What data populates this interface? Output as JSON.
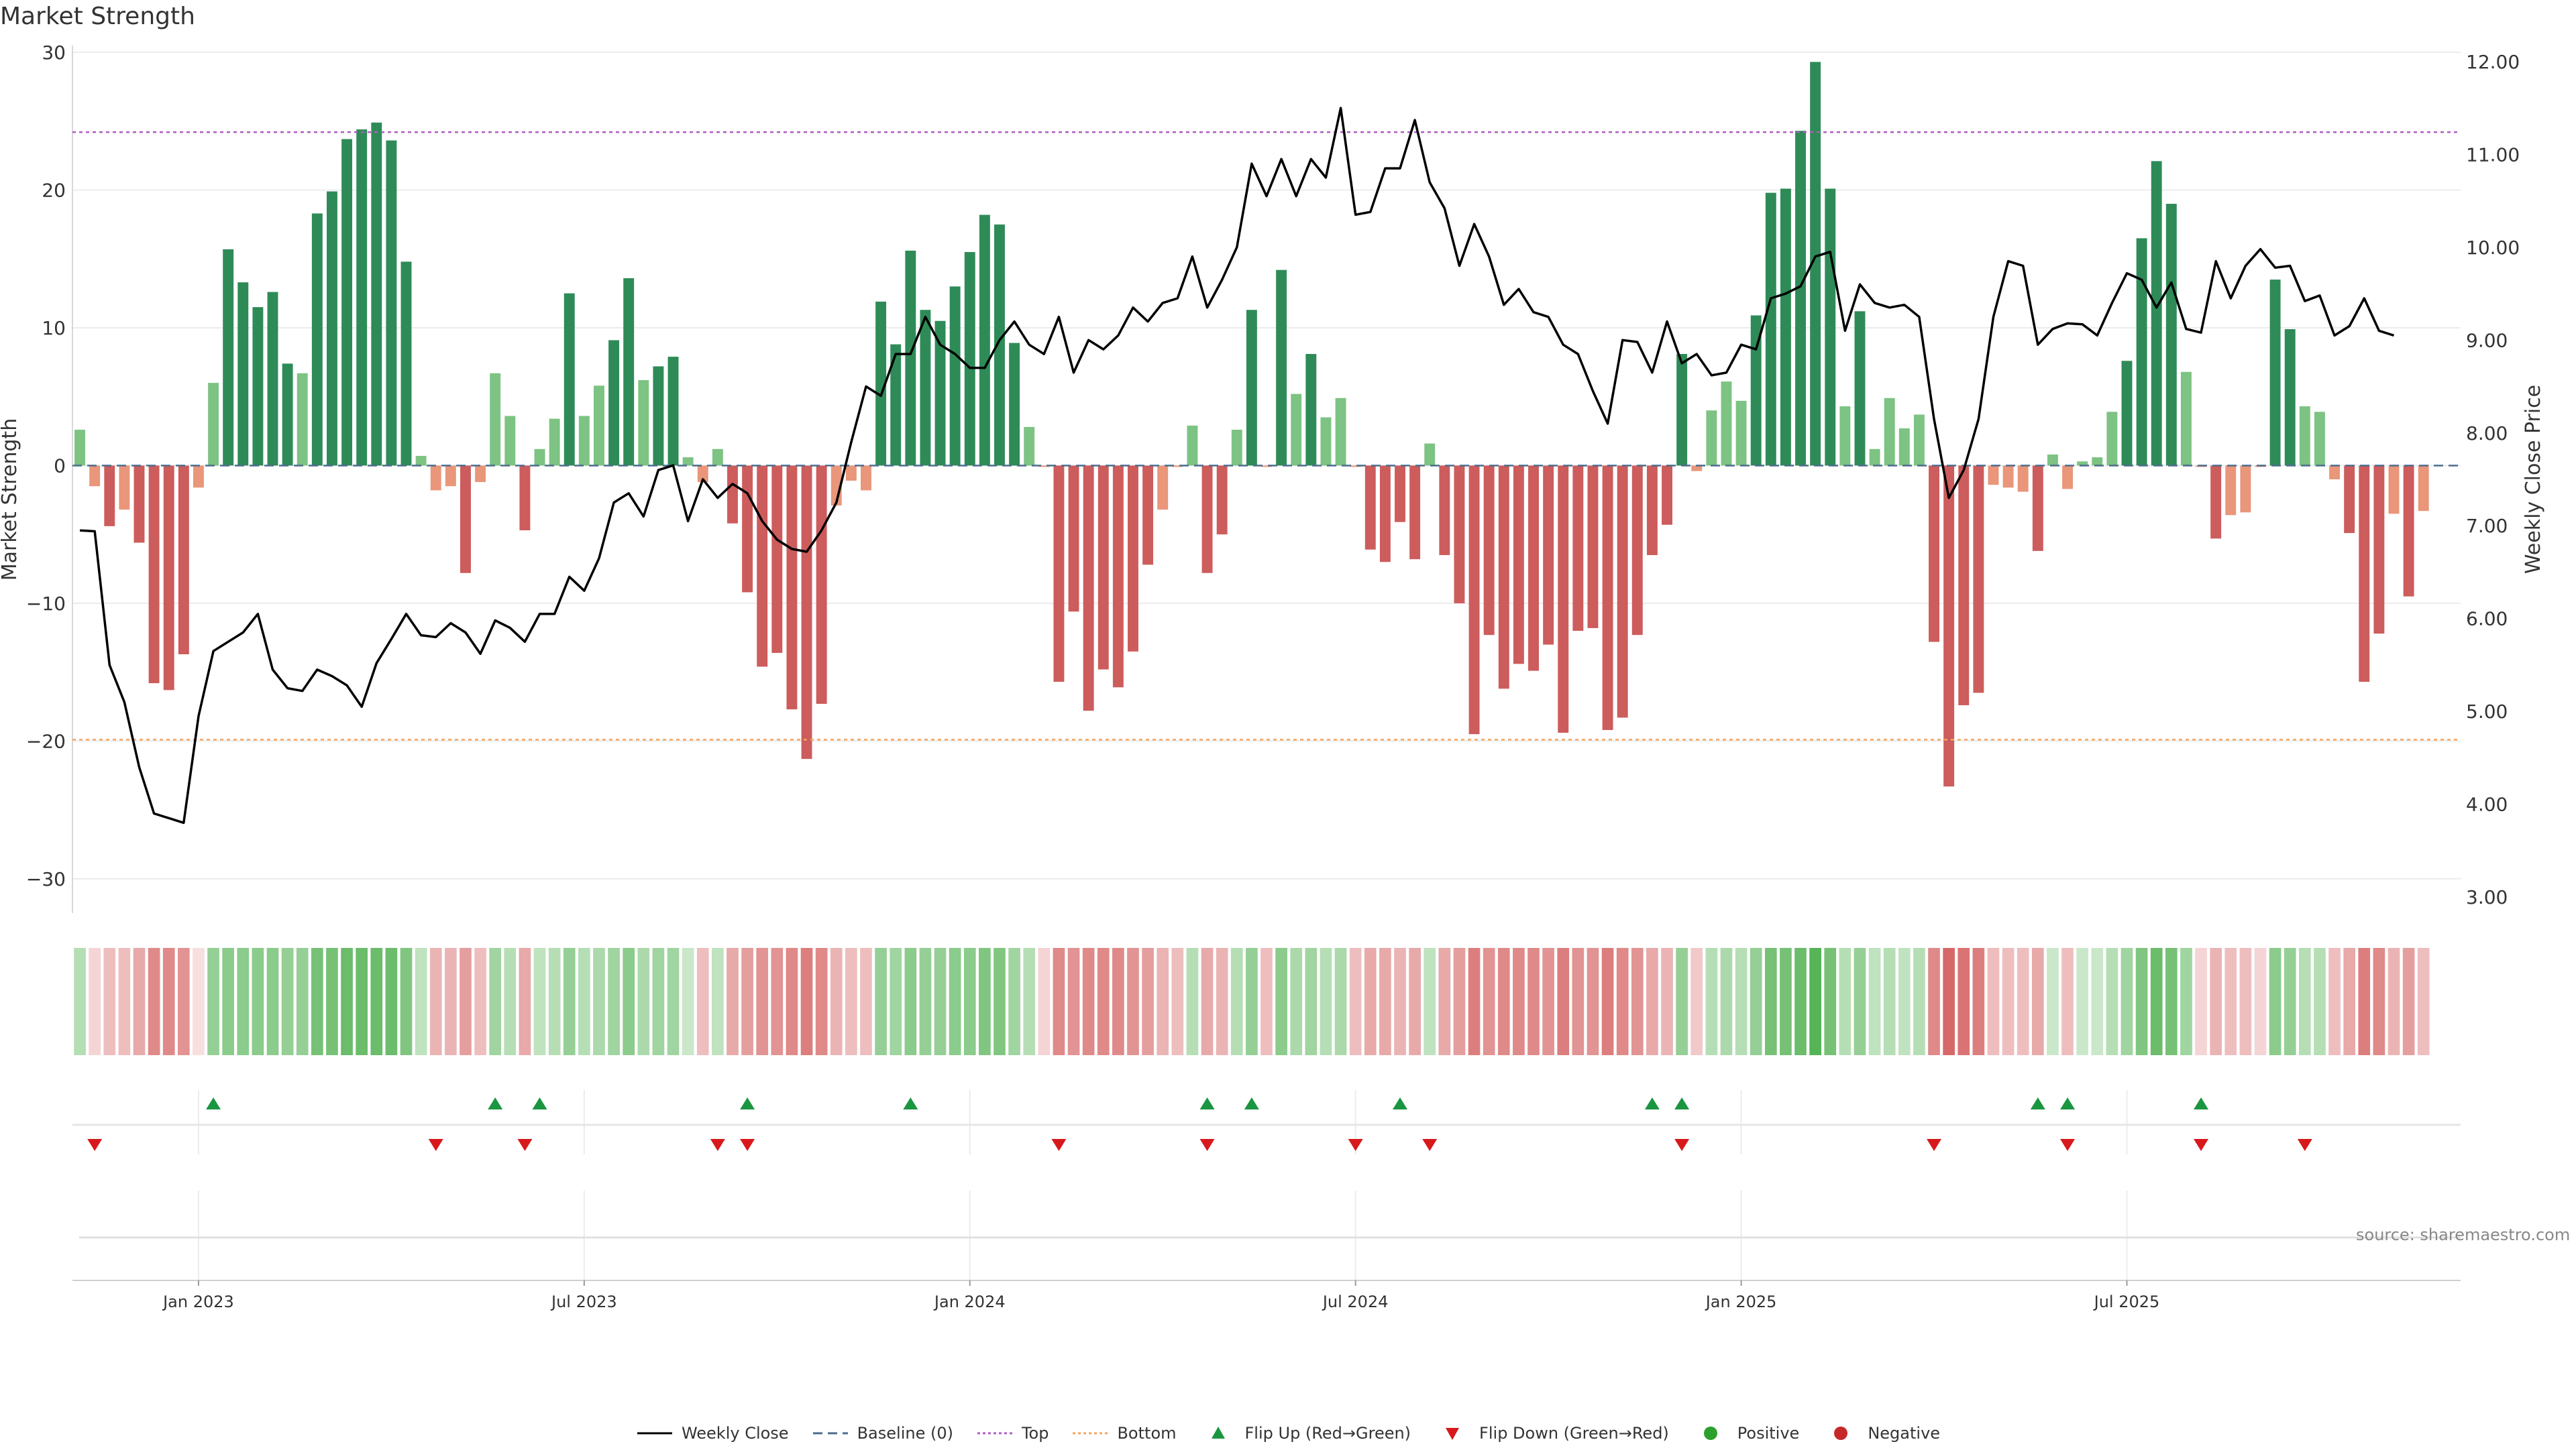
{
  "title": "Market Strength",
  "source": "source: sharemaestro.com",
  "colors": {
    "strong_green": "#2e8b57",
    "light_green": "#7dc383",
    "strong_red": "#cd5c5c",
    "light_red": "#e9967a",
    "top_line": "#b05cc0",
    "bottom_line": "#f4a460",
    "baseline": "#4a6c8c",
    "close_line": "#000000",
    "flip_up": "#1a9641",
    "flip_down": "#d7191c",
    "positive": "#2ca02c",
    "negative": "#c62828"
  },
  "chart_data": {
    "type": "bar+line",
    "title": "Market Strength",
    "y_left": {
      "label": "Market Strength",
      "range": [
        -32,
        30
      ],
      "ticks": [
        30,
        20,
        10,
        0,
        -10,
        -20,
        -30
      ],
      "tick_labels": [
        "30",
        "20",
        "10",
        "0",
        "−10",
        "−20",
        "−30"
      ]
    },
    "y_right": {
      "label": "Weekly Close Price",
      "range": [
        2.9,
        12.1
      ],
      "ticks": [
        12.0,
        11.0,
        10.0,
        9.0,
        8.0,
        7.0,
        6.0,
        5.0,
        4.0,
        3.0
      ],
      "tick_labels": [
        "12.00",
        "11.00",
        "10.00",
        "9.00",
        "8.00",
        "7.00",
        "6.00",
        "5.00",
        "4.00",
        "3.00"
      ]
    },
    "x_range": [
      -8.5,
      152.5
    ],
    "x_ticks": [
      {
        "week": 0,
        "label": "Jan 2023"
      },
      {
        "week": 26,
        "label": "Jul 2023"
      },
      {
        "week": 52,
        "label": "Jan 2024"
      },
      {
        "week": 78,
        "label": "Jul 2024"
      },
      {
        "week": 104,
        "label": "Jan 2025"
      },
      {
        "week": 130,
        "label": "Jul 2025"
      }
    ],
    "first_week": -8,
    "strength": [
      2.6,
      -1.5,
      -4.4,
      -3.2,
      -5.6,
      -15.8,
      -16.3,
      -13.7,
      -1.6,
      6.0,
      15.7,
      13.3,
      11.5,
      12.6,
      7.4,
      6.7,
      18.3,
      19.9,
      23.7,
      24.4,
      24.9,
      23.6,
      14.8,
      0.7,
      -1.8,
      -1.5,
      -7.8,
      -1.2,
      6.7,
      3.6,
      -4.7,
      1.2,
      3.4,
      12.5,
      3.6,
      5.8,
      9.1,
      13.6,
      6.2,
      7.2,
      7.9,
      0.6,
      -1.2,
      1.2,
      -4.2,
      -9.2,
      -14.6,
      -13.6,
      -17.7,
      -21.3,
      -17.3,
      -2.9,
      -1.1,
      -1.8,
      11.9,
      8.8,
      15.6,
      11.3,
      10.5,
      13.0,
      15.5,
      18.2,
      17.5,
      8.9,
      2.8,
      -0.1,
      -15.7,
      -10.6,
      -17.8,
      -14.8,
      -16.1,
      -13.5,
      -7.2,
      -3.2,
      -0.1,
      2.9,
      -7.8,
      -5.0,
      2.6,
      11.3,
      -0.1,
      14.2,
      5.2,
      8.1,
      3.5,
      4.9,
      -0.1,
      -6.1,
      -7.0,
      -4.1,
      -6.8,
      1.6,
      -6.5,
      -10.0,
      -19.5,
      -12.3,
      -16.2,
      -14.4,
      -14.9,
      -13.0,
      -19.4,
      -12.0,
      -11.8,
      -19.2,
      -18.3,
      -12.3,
      -6.5,
      -4.3,
      8.1,
      -0.4,
      4.0,
      6.1,
      4.7,
      10.9,
      19.8,
      20.1,
      24.3,
      29.3,
      20.1,
      4.3,
      11.2,
      1.2,
      4.9,
      2.7,
      3.7,
      -12.8,
      -23.3,
      -17.4,
      -16.5,
      -1.4,
      -1.6,
      -1.9,
      -6.2,
      0.8,
      -1.7,
      0.3,
      0.6,
      3.9,
      7.6,
      16.5,
      22.1,
      19.0,
      6.8,
      -0.1,
      -5.3,
      -3.6,
      -3.4,
      -0.1,
      13.5,
      9.9,
      4.3,
      3.9,
      -1.0,
      -4.9,
      -15.7,
      -12.2,
      -3.5,
      -9.5,
      -3.3
    ],
    "close": [
      6.95,
      6.94,
      5.5,
      5.1,
      4.4,
      3.9,
      3.85,
      3.8,
      4.95,
      5.65,
      5.75,
      5.85,
      6.05,
      5.45,
      5.25,
      5.22,
      5.45,
      5.38,
      5.28,
      5.05,
      5.52,
      5.78,
      6.05,
      5.82,
      5.8,
      5.95,
      5.85,
      5.62,
      5.98,
      5.9,
      5.75,
      6.05,
      6.05,
      6.45,
      6.3,
      6.65,
      7.25,
      7.35,
      7.1,
      7.6,
      7.65,
      7.05,
      7.5,
      7.3,
      7.45,
      7.35,
      7.05,
      6.85,
      6.75,
      6.72,
      6.95,
      7.25,
      7.9,
      8.5,
      8.4,
      8.85,
      8.85,
      9.25,
      8.95,
      8.85,
      8.7,
      8.7,
      9.0,
      9.2,
      8.95,
      8.85,
      9.25,
      8.65,
      9.0,
      8.9,
      9.05,
      9.35,
      9.2,
      9.4,
      9.45,
      9.9,
      9.35,
      9.65,
      10.0,
      10.9,
      10.55,
      10.95,
      10.55,
      10.95,
      10.75,
      11.5,
      10.35,
      10.38,
      10.85,
      10.85,
      11.37,
      10.7,
      10.42,
      9.8,
      10.25,
      9.9,
      9.38,
      9.55,
      9.3,
      9.25,
      8.95,
      8.85,
      8.45,
      8.1,
      9.0,
      8.98,
      8.65,
      9.2,
      8.75,
      8.85,
      8.62,
      8.65,
      8.95,
      8.9,
      9.45,
      9.5,
      9.58,
      9.9,
      9.95,
      9.1,
      9.6,
      9.4,
      9.35,
      9.38,
      9.25,
      8.15,
      7.3,
      7.6,
      8.15,
      9.25,
      9.85,
      9.8,
      8.95,
      9.12,
      9.18,
      9.17,
      9.05,
      9.4,
      9.72,
      9.65,
      9.35,
      9.62,
      9.12,
      9.08,
      9.85,
      9.45,
      9.8,
      9.98,
      9.78,
      9.8,
      9.42,
      9.48,
      9.05,
      9.15,
      9.45,
      9.1,
      9.05
    ],
    "top_level": 24.2,
    "bottom_level": -19.9,
    "flip_up_weeks": [
      1,
      20,
      23,
      37,
      48,
      68,
      71,
      81,
      98,
      100,
      124,
      126,
      135
    ],
    "flip_down_weeks": [
      -7,
      16,
      22,
      35,
      37,
      58,
      68,
      78,
      83,
      100,
      117,
      126,
      135,
      142
    ],
    "heatmap_alpha": [
      0.35,
      0.2,
      0.3,
      0.3,
      0.4,
      0.55,
      0.55,
      0.5,
      0.15,
      0.5,
      0.55,
      0.55,
      0.55,
      0.55,
      0.5,
      0.5,
      0.65,
      0.65,
      0.7,
      0.7,
      0.7,
      0.7,
      0.6,
      0.3,
      0.35,
      0.35,
      0.45,
      0.3,
      0.45,
      0.35,
      0.4,
      0.3,
      0.35,
      0.5,
      0.35,
      0.4,
      0.45,
      0.55,
      0.4,
      0.45,
      0.45,
      0.25,
      0.3,
      0.3,
      0.4,
      0.45,
      0.5,
      0.5,
      0.55,
      0.6,
      0.55,
      0.35,
      0.3,
      0.3,
      0.5,
      0.45,
      0.55,
      0.5,
      0.5,
      0.55,
      0.55,
      0.6,
      0.6,
      0.45,
      0.35,
      0.2,
      0.55,
      0.5,
      0.55,
      0.55,
      0.55,
      0.5,
      0.45,
      0.35,
      0.3,
      0.35,
      0.4,
      0.35,
      0.35,
      0.5,
      0.3,
      0.55,
      0.4,
      0.45,
      0.35,
      0.4,
      0.3,
      0.4,
      0.4,
      0.35,
      0.4,
      0.3,
      0.4,
      0.45,
      0.6,
      0.5,
      0.55,
      0.55,
      0.55,
      0.5,
      0.6,
      0.5,
      0.5,
      0.6,
      0.55,
      0.5,
      0.4,
      0.35,
      0.5,
      0.25,
      0.35,
      0.4,
      0.35,
      0.5,
      0.65,
      0.65,
      0.7,
      0.8,
      0.65,
      0.35,
      0.5,
      0.3,
      0.35,
      0.3,
      0.35,
      0.55,
      0.7,
      0.65,
      0.6,
      0.3,
      0.3,
      0.3,
      0.4,
      0.25,
      0.3,
      0.25,
      0.25,
      0.35,
      0.45,
      0.6,
      0.7,
      0.65,
      0.45,
      0.2,
      0.35,
      0.3,
      0.3,
      0.2,
      0.55,
      0.5,
      0.35,
      0.35,
      0.3,
      0.4,
      0.6,
      0.55,
      0.35,
      0.45,
      0.3
    ]
  },
  "legend": [
    {
      "label": "Weekly Close",
      "symbol": "line"
    },
    {
      "label": "Baseline (0)",
      "symbol": "dash"
    },
    {
      "label": "Top",
      "symbol": "dot-purple"
    },
    {
      "label": "Bottom",
      "symbol": "dot-orange"
    },
    {
      "label": "Flip Up (Red→Green)",
      "symbol": "triangle-up"
    },
    {
      "label": "Flip Down (Green→Red)",
      "symbol": "triangle-down"
    },
    {
      "label": "Positive",
      "symbol": "circle-green"
    },
    {
      "label": "Negative",
      "symbol": "circle-red"
    }
  ]
}
